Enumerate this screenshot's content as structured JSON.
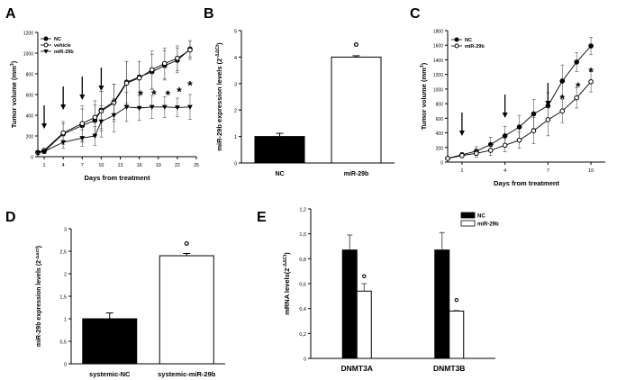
{
  "chart_data": [
    {
      "panel": "A",
      "type": "line",
      "xlabel": "Days from treatment",
      "ylabel": "Tumor volume (mm",
      "ylabel_sup": "3",
      "ylabel_end": ")",
      "xlim": [
        0,
        25
      ],
      "ylim": [
        0,
        1200
      ],
      "xticks": [
        1,
        4,
        7,
        10,
        13,
        16,
        19,
        22,
        25
      ],
      "yticks": [
        0,
        200,
        400,
        600,
        800,
        1000,
        1200
      ],
      "legend": [
        "NC",
        "vehicle",
        "miR-29b"
      ],
      "legend_position": "top-left",
      "arrows_at_day": [
        1,
        4,
        7,
        10
      ],
      "series": [
        {
          "name": "NC",
          "marker": "filled-circle",
          "x": [
            0,
            1,
            4,
            7,
            9,
            10,
            12,
            14,
            16,
            18,
            20,
            22,
            24
          ],
          "y": [
            40,
            50,
            220,
            300,
            350,
            450,
            530,
            720,
            770,
            820,
            880,
            930,
            1040
          ],
          "err": [
            10,
            20,
            100,
            160,
            150,
            180,
            170,
            200,
            150,
            170,
            140,
            120,
            80
          ]
        },
        {
          "name": "vehicle",
          "marker": "open-circle",
          "x": [
            0,
            1,
            4,
            7,
            9,
            10,
            12,
            14,
            16,
            18,
            20,
            22,
            24
          ],
          "y": [
            40,
            60,
            230,
            320,
            380,
            440,
            520,
            710,
            760,
            840,
            900,
            950,
            1030
          ],
          "err": [
            10,
            20,
            110,
            170,
            160,
            190,
            180,
            210,
            160,
            180,
            150,
            120,
            90
          ]
        },
        {
          "name": "miR-29b",
          "marker": "filled-triangle",
          "x": [
            0,
            1,
            4,
            7,
            9,
            10,
            12,
            14,
            16,
            18,
            20,
            22,
            24
          ],
          "y": [
            40,
            50,
            140,
            180,
            200,
            340,
            400,
            480,
            470,
            480,
            480,
            475,
            480
          ],
          "err": [
            10,
            20,
            60,
            80,
            90,
            150,
            160,
            140,
            120,
            110,
            100,
            90,
            120
          ]
        }
      ],
      "significance": [
        {
          "label": "*",
          "x": 16.2,
          "y": 610
        },
        {
          "label": "*",
          "x": 18.3,
          "y": 615
        },
        {
          "label": "*",
          "x": 20.5,
          "y": 610
        },
        {
          "label": "*",
          "x": 22.3,
          "y": 640
        },
        {
          "label": "*",
          "x": 24.0,
          "y": 700
        }
      ]
    },
    {
      "panel": "B",
      "type": "bar",
      "categories": [
        "NC",
        "miR-29b"
      ],
      "values": [
        1.0,
        4.0
      ],
      "err": [
        0.12,
        0.05
      ],
      "fills": [
        "#000000",
        "#ffffff"
      ],
      "ylabel": "miR-29b expression levels (2",
      "ylabel_sup": "-ΔΔCt",
      "ylabel_end": ")",
      "ylim": [
        0,
        5
      ],
      "yticks": [
        0,
        1,
        2,
        3,
        4,
        5
      ],
      "annotations": [
        {
          "label": "°",
          "category": "miR-29b",
          "y": 4.35
        }
      ]
    },
    {
      "panel": "C",
      "type": "line",
      "xlabel": "Days from treatment",
      "ylabel": "Tumor volume (mm",
      "ylabel_sup": "3",
      "ylabel_end": ")",
      "xlim": [
        0,
        11
      ],
      "ylim": [
        0,
        1800
      ],
      "xticks": [
        1,
        4,
        7,
        10
      ],
      "yticks": [
        0,
        200,
        400,
        600,
        800,
        1000,
        1200,
        1400,
        1600,
        1800
      ],
      "legend": [
        "NC",
        "miR-29b"
      ],
      "legend_position": "top-left",
      "arrows_at_day": [
        1,
        4,
        7
      ],
      "series": [
        {
          "name": "NC",
          "marker": "filled-circle",
          "x": [
            0,
            1,
            2,
            3,
            4,
            5,
            6,
            7,
            8,
            9,
            10
          ],
          "y": [
            50,
            100,
            150,
            240,
            360,
            480,
            660,
            770,
            1110,
            1370,
            1590
          ],
          "err": [
            20,
            30,
            60,
            100,
            130,
            160,
            200,
            180,
            220,
            130,
            120
          ]
        },
        {
          "name": "miR-29b",
          "marker": "open-circle",
          "x": [
            0,
            1,
            2,
            3,
            4,
            5,
            6,
            7,
            8,
            9,
            10
          ],
          "y": [
            50,
            90,
            120,
            160,
            230,
            300,
            430,
            580,
            700,
            880,
            1100
          ],
          "err": [
            20,
            30,
            50,
            70,
            90,
            110,
            180,
            220,
            160,
            140,
            140
          ]
        }
      ],
      "significance": [
        {
          "label": "*",
          "x": 8.0,
          "y": 880
        },
        {
          "label": "*",
          "x": 9.1,
          "y": 1050
        },
        {
          "label": "*",
          "x": 10.0,
          "y": 1250
        }
      ]
    },
    {
      "panel": "D",
      "type": "bar",
      "categories": [
        "systemic-NC",
        "systemic-miR-29b"
      ],
      "values": [
        1.0,
        2.4
      ],
      "err": [
        0.13,
        0.05
      ],
      "fills": [
        "#000000",
        "#ffffff"
      ],
      "ylabel": "miR-29b expression levels (2",
      "ylabel_sup": "-ΔΔCt",
      "ylabel_end": ")",
      "ylim": [
        0,
        3.0
      ],
      "yticks": [
        0,
        0.5,
        1.0,
        1.5,
        2.0,
        2.5,
        3.0
      ],
      "ytick_labels": [
        "0",
        "0,5",
        "1",
        "1,5",
        "2",
        "2,5",
        "3"
      ],
      "annotations": [
        {
          "label": "°",
          "category": "systemic-miR-29b",
          "y": 2.6
        }
      ]
    },
    {
      "panel": "E",
      "type": "bar",
      "categories": [
        "DNMT3A",
        "DNMT3B"
      ],
      "series": [
        {
          "name": "NC",
          "values": [
            0.87,
            0.87
          ],
          "err": [
            0.12,
            0.14
          ],
          "fill": "#000000"
        },
        {
          "name": "miR-29b",
          "values": [
            0.54,
            0.38
          ],
          "err": [
            0.06,
            0.005
          ],
          "fill": "#ffffff"
        }
      ],
      "ylabel": "mRNA levels(2",
      "ylabel_sup": "-ΔΔCt",
      "ylabel_end": ")",
      "ylim": [
        0,
        1.2
      ],
      "yticks": [
        0,
        0.2,
        0.4,
        0.6,
        0.8,
        1.0,
        1.2
      ],
      "ytick_labels": [
        "0",
        "0,2",
        "0,4",
        "0,6",
        "0,8",
        "1,0",
        "1,2"
      ],
      "legend_position": "top-right",
      "annotations": [
        {
          "label": "°",
          "category": "DNMT3A",
          "y": 0.64
        },
        {
          "label": "°",
          "category": "DNMT3B",
          "y": 0.45
        }
      ]
    }
  ]
}
